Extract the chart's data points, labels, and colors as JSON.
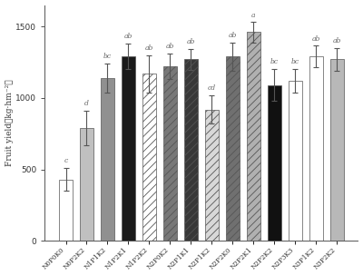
{
  "categories": [
    "N0P0K0",
    "N0P2K2",
    "N1P1K2",
    "N1P2K1",
    "N1P2K2",
    "N2P0K2",
    "N2P1K1",
    "N2P1K2",
    "N2P2K0",
    "N2P2K1",
    "N2P2K2",
    "N2P3K3",
    "N3P1K2",
    "N3P2K2"
  ],
  "values": [
    430,
    790,
    1140,
    1290,
    1170,
    1220,
    1270,
    920,
    1290,
    1460,
    1090,
    1120,
    1290,
    1270
  ],
  "errors": [
    80,
    120,
    100,
    90,
    130,
    90,
    75,
    100,
    100,
    70,
    110,
    80,
    75,
    80
  ],
  "letters": [
    "c",
    "d",
    "bc",
    "ab",
    "ab",
    "ab",
    "ab",
    "cd",
    "ab",
    "a",
    "bc",
    "bc",
    "ab",
    "ab"
  ],
  "face_colors": [
    "white",
    "#c0c0c0",
    "#909090",
    "#1a1a1a",
    "white",
    "#787878",
    "#383838",
    "#d8d8d8",
    "#707070",
    "#b0b0b0",
    "#111111",
    "white",
    "white",
    "#b8b8b8"
  ],
  "hatch_patterns": [
    "",
    "",
    "",
    "",
    "////",
    "////",
    "////",
    "////",
    "////",
    "////",
    "",
    "=====",
    "",
    ""
  ],
  "edge_colors": [
    "#555555",
    "#555555",
    "#555555",
    "#555555",
    "#555555",
    "#555555",
    "#555555",
    "#555555",
    "#555555",
    "#555555",
    "#555555",
    "#555555",
    "#555555",
    "#555555"
  ],
  "ylabel": "Fruit yield（kg·hm⁻²）",
  "ylim": [
    0,
    1650
  ],
  "yticks": [
    0,
    500,
    1000,
    1500
  ],
  "bar_width": 0.65
}
